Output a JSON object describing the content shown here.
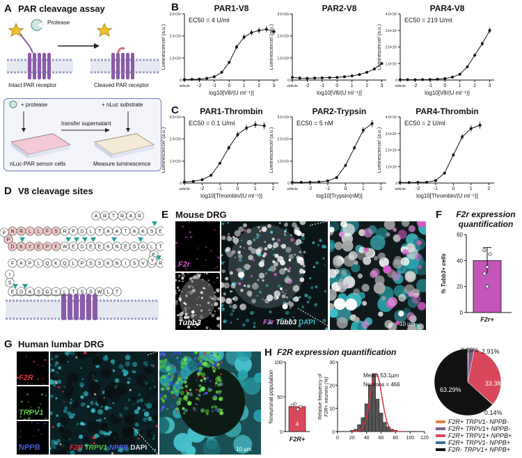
{
  "panel_letters": {
    "A": "A",
    "B": "B",
    "C": "C",
    "D": "D",
    "E": "E",
    "F": "F",
    "G": "G",
    "H": "H"
  },
  "panelA": {
    "title": "PAR cleavage assay",
    "protease": "Protease",
    "intact": "Intact PAR receptor",
    "cleaved": "Cleaved PAR receptor",
    "plus_protease": "+ protease",
    "plus_nluc": "+ nLuc substrate",
    "transfer": "transfer supernatant",
    "sensor_cells": "nLuc-PAR sensor cells",
    "measure": "Measure luminescence"
  },
  "panelD": {
    "title": "V8 cleavage sites",
    "row1": [
      "A",
      "R",
      "T",
      "R",
      "A",
      "R"
    ],
    "row2": [
      "N",
      "R",
      "L",
      "L",
      "F",
      "S",
      "R",
      "P",
      "D",
      "L",
      "T",
      "A",
      "A",
      "T",
      "A",
      "K",
      "S",
      "E",
      "P",
      "P"
    ],
    "row3": [
      "D",
      "K",
      "Y",
      "E",
      "P",
      "F",
      "W",
      "E",
      "D",
      "E",
      "E",
      "K",
      "N",
      "E",
      "S",
      "G",
      "L",
      "T",
      "E",
      "Y"
    ],
    "row4": [
      "F",
      "A",
      "P",
      "L",
      "Q",
      "K",
      "Q",
      "L",
      "P",
      "S",
      "S",
      "K",
      "N",
      "I",
      "S",
      "V",
      "L",
      "R"
    ],
    "row5": [
      "E",
      "D",
      "A",
      "S",
      "G",
      "Y",
      "L",
      "T",
      "S",
      "S",
      "W",
      "L",
      "T"
    ],
    "left_mark": "I",
    "left_mark2": "S"
  },
  "panelE": {
    "title": "Mouse DRG",
    "f2r": "F2r",
    "tubb3": "Tubb3",
    "merge": [
      "F2r",
      "Tubb3",
      "DAPI"
    ],
    "scale": "10 µm"
  },
  "panelF": {
    "title_line1": "F2r expression",
    "title_line2": "quantification",
    "ylabel": "% Tubb3+ cells",
    "xlabel": "F2r+"
  },
  "panelG": {
    "title": "Human lumbar DRG",
    "f2r": "F2R",
    "trpv1": "TRPV1",
    "nppb": "NPPB",
    "merge": [
      "F2R",
      "TRPV1",
      "NPPB",
      "DAPI"
    ],
    "scale": "10 µm"
  },
  "panelH": {
    "title": "F2R expression quantification",
    "bar_ylabel": "%neuronal population",
    "bar_xlabel": "F2R+",
    "bar_n": "4",
    "hist_ylabel_1": "Relative frequency of",
    "hist_ylabel_2": "F2R+ neurons (%)",
    "mean": "Mean: 53.1µm",
    "neurons": "Neurons = 466"
  },
  "chart_data": [
    {
      "type": "line",
      "title": "PAR1-V8",
      "annotation": "EC50 = 4 U/ml",
      "xlabel": "log10[V8/(U ml⁻¹)]",
      "ylabel": "Luminescence/ (a.u.)",
      "x_ticks": [
        "vehicle",
        "-2",
        "-1",
        "0",
        "1",
        "2",
        "3"
      ],
      "y_ticks": [
        "0",
        "1.0×10⁶",
        "2.0×10⁶",
        "3.0×10⁶"
      ],
      "ylim": [
        0,
        3000000
      ],
      "x": [
        -3,
        -2.5,
        -2,
        -1.5,
        -1,
        -0.5,
        0,
        0.5,
        1,
        1.5,
        2,
        2.5,
        3
      ],
      "y": [
        20000,
        30000,
        40000,
        80000,
        150000,
        350000,
        800000,
        1500000,
        1950000,
        2150000,
        2250000,
        2300000,
        2200000
      ]
    },
    {
      "type": "line",
      "title": "PAR2-V8",
      "xlabel": "log10[V8/(U ml⁻¹)]",
      "ylabel": "Luminescence/ (a.u.)",
      "x_ticks": [
        "vehicle",
        "-2",
        "-1",
        "0",
        "1",
        "2",
        "3"
      ],
      "y_ticks": [
        "0",
        "1.0×10⁶",
        "2.0×10⁶",
        "3.0×10⁶"
      ],
      "ylim": [
        0,
        3000000
      ],
      "x": [
        -3,
        -2.5,
        -2,
        -1.5,
        -1,
        -0.5,
        0,
        0.5,
        1,
        1.5,
        2,
        2.5,
        3
      ],
      "y": [
        120000,
        90000,
        80000,
        90000,
        100000,
        110000,
        120000,
        150000,
        190000,
        250000,
        350000,
        500000,
        750000
      ]
    },
    {
      "type": "line",
      "title": "PAR4-V8",
      "annotation": "EC50 = 219 U/ml",
      "xlabel": "log10[V8/(U ml⁻¹)]",
      "ylabel": "Luminescence/ (a.u.)",
      "x_ticks": [
        "vehicle",
        "-2",
        "-1",
        "0",
        "1",
        "2",
        "3"
      ],
      "y_ticks": [
        "0",
        "1.0×10⁷",
        "2.0×10⁷",
        "3.0×10⁷",
        "4.0×10⁷"
      ],
      "ylim": [
        0,
        40000000
      ],
      "x": [
        -3,
        -2.5,
        -2,
        -1.5,
        -1,
        -0.5,
        0,
        0.5,
        1,
        1.5,
        2,
        2.5,
        3
      ],
      "y": [
        200000,
        200000,
        200000,
        250000,
        300000,
        500000,
        900000,
        1800000,
        3500000,
        8000000,
        15000000,
        22000000,
        30000000
      ]
    },
    {
      "type": "line",
      "title": "PAR1-Thrombin",
      "annotation": "EC50 = 0.1 U/ml",
      "xlabel": "log10[Thrombin/(U ml⁻¹)]",
      "ylabel": "Luminescence/ (a.u.)",
      "x_ticks": [
        "vehicle",
        "-2",
        "-1",
        "0",
        "1",
        "2"
      ],
      "y_ticks": [
        "0",
        "1.0×10⁶",
        "2.0×10⁶",
        "3.0×10⁶"
      ],
      "ylim": [
        0,
        3000000
      ],
      "x": [
        -3,
        -2.5,
        -2,
        -1.5,
        -1,
        -0.5,
        0,
        0.5,
        1,
        1.5
      ],
      "y": [
        50000,
        80000,
        150000,
        350000,
        900000,
        1600000,
        2200000,
        2500000,
        2650000,
        2600000
      ]
    },
    {
      "type": "line",
      "title": "PAR2-Trypsin",
      "annotation": "EC50 = 5 nM",
      "xlabel": "log10[Trypsin(nM)]",
      "ylabel": "Luminescence/ (a.u.)",
      "x_ticks": [
        "vehicle",
        "-2",
        "-1",
        "0",
        "1",
        "2"
      ],
      "y_ticks": [
        "0",
        "1.0×10⁶",
        "2.0×10⁶",
        "3.0×10⁶"
      ],
      "ylim": [
        0,
        3000000
      ],
      "x": [
        -3,
        -2.5,
        -2,
        -1.5,
        -1,
        -0.5,
        0,
        0.5,
        1,
        1.5
      ],
      "y": [
        30000,
        30000,
        40000,
        50000,
        100000,
        250000,
        800000,
        1600000,
        2400000,
        2700000
      ]
    },
    {
      "type": "line",
      "title": "PAR4-Thrombin",
      "annotation": "EC50 = 2 U/ml",
      "xlabel": "log10[Thrombin/(U ml⁻¹)]",
      "ylabel": "Luminescence/ (a.u.)",
      "x_ticks": [
        "vehicle",
        "-2",
        "-1",
        "0",
        "1",
        "2"
      ],
      "y_ticks": [
        "0",
        "1.0×10⁷",
        "2.0×10⁷",
        "3.0×10⁷",
        "4.0×10⁷"
      ],
      "ylim": [
        0,
        40000000
      ],
      "x": [
        -3,
        -2.5,
        -2,
        -1.5,
        -1,
        -0.5,
        0,
        0.5,
        1,
        1.5
      ],
      "y": [
        300000,
        300000,
        400000,
        500000,
        1500000,
        6000000,
        17000000,
        28000000,
        33000000,
        35000000
      ]
    },
    {
      "type": "bar",
      "title": "F2r expression quantification",
      "categories": [
        "F2r+"
      ],
      "values": [
        40
      ],
      "error": [
        10
      ],
      "points": [
        30,
        35,
        45,
        48,
        20
      ],
      "ylabel": "% Tubb3+ cells",
      "y_ticks": [
        "0",
        "20",
        "40",
        "60"
      ],
      "ylim": [
        0,
        60
      ]
    },
    {
      "type": "bar",
      "title": "F2R expression quantification",
      "categories": [
        "F2R+"
      ],
      "values": [
        36
      ],
      "n": "4",
      "ylabel": "%neuronal population",
      "y_ticks": [
        "0",
        "50",
        "100"
      ],
      "ylim": [
        0,
        100
      ]
    },
    {
      "type": "bar",
      "subtype": "histogram",
      "xlabel": "",
      "x_ticks": [
        "0",
        "20",
        "40",
        "60",
        "80",
        "100",
        "120"
      ],
      "y_ticks": [
        "0",
        "10",
        "20",
        "30"
      ],
      "ylim": [
        0,
        30
      ],
      "bins": [
        20,
        25,
        30,
        35,
        40,
        45,
        50,
        55,
        60,
        65,
        70,
        75,
        80
      ],
      "values": [
        0.5,
        1,
        3,
        6,
        12,
        20,
        25,
        14,
        8,
        4,
        2,
        1,
        0.5
      ],
      "annotations": [
        "Mean: 53.1µm",
        "Neurons = 466"
      ]
    },
    {
      "type": "pie",
      "labels": [
        "F2R+ TRPV1- NPPB-",
        "F2R+ TRPV1+ NPPB-",
        "F2R+ TRPV1+ NPPB+",
        "F2R+ TRPV1- NPPB+",
        "F2R- TRPV1+ NPPB+"
      ],
      "slice_labels": [
        "0.29%",
        "2.91%",
        "33.38%",
        "0.14%",
        "63.29%"
      ],
      "values": [
        0.29,
        2.91,
        33.38,
        0.14,
        63.29
      ],
      "colors": [
        "#e8823a",
        "#7a5f8a",
        "#d9485a",
        "#3f6fa0",
        "#111111"
      ]
    }
  ]
}
